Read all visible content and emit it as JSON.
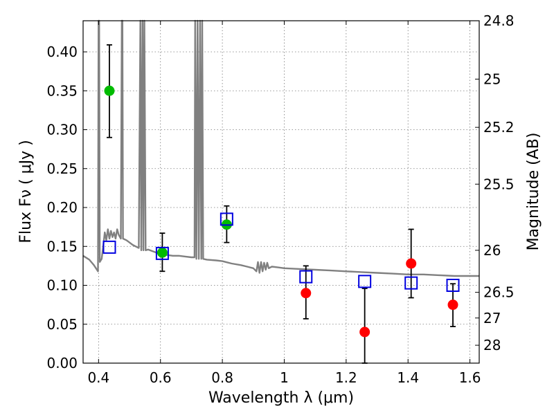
{
  "chart_data": {
    "type": "scatter",
    "xlabel": "Wavelength  λ (μm)",
    "ylabel": "Flux  Fν  ( μJy )",
    "ylabel_right": "Magnitude (AB)",
    "xlim": [
      0.35,
      1.63
    ],
    "ylim": [
      0.0,
      0.44
    ],
    "grid": true,
    "x_ticks": [
      0.4,
      0.6,
      0.8,
      1.0,
      1.2,
      1.4,
      1.6
    ],
    "x_tick_labels": [
      "0.4",
      "0.6",
      "0.8",
      "1",
      "1.2",
      "1.4",
      "1.6"
    ],
    "y_ticks": [
      0.0,
      0.05,
      0.1,
      0.15,
      0.2,
      0.25,
      0.3,
      0.35,
      0.4
    ],
    "y_tick_labels": [
      "0.00",
      "0.05",
      "0.10",
      "0.15",
      "0.20",
      "0.25",
      "0.30",
      "0.35",
      "0.40"
    ],
    "right_ticks": [
      {
        "label": "24.8",
        "flux": 0.44
      },
      {
        "label": "25",
        "flux": 0.365
      },
      {
        "label": "25.2",
        "flux": 0.303
      },
      {
        "label": "25.5",
        "flux": 0.23
      },
      {
        "label": "26",
        "flux": 0.145
      },
      {
        "label": "26.5",
        "flux": 0.091
      },
      {
        "label": "27",
        "flux": 0.058
      },
      {
        "label": "28",
        "flux": 0.023
      }
    ],
    "series": [
      {
        "name": "detections (green)",
        "color": "#00bb00",
        "points": [
          {
            "x": 0.435,
            "y": 0.35,
            "err_lo": 0.29,
            "err_hi": 0.409
          },
          {
            "x": 0.606,
            "y": 0.142,
            "err_lo": 0.118,
            "err_hi": 0.167
          },
          {
            "x": 0.814,
            "y": 0.178,
            "err_lo": 0.155,
            "err_hi": 0.202
          }
        ]
      },
      {
        "name": "near-IR (red)",
        "color": "#ff0000",
        "points": [
          {
            "x": 1.07,
            "y": 0.09,
            "err_lo": 0.057,
            "err_hi": 0.125
          },
          {
            "x": 1.26,
            "y": 0.04,
            "err_lo": 0.0,
            "err_hi": 0.096
          },
          {
            "x": 1.41,
            "y": 0.128,
            "err_lo": 0.084,
            "err_hi": 0.172
          },
          {
            "x": 1.545,
            "y": 0.075,
            "err_lo": 0.047,
            "err_hi": 0.102
          }
        ]
      },
      {
        "name": "model photometry (blue squares)",
        "color": "#0000e0",
        "points": [
          {
            "x": 0.435,
            "y": 0.149
          },
          {
            "x": 0.606,
            "y": 0.141
          },
          {
            "x": 0.814,
            "y": 0.185
          },
          {
            "x": 1.07,
            "y": 0.111
          },
          {
            "x": 1.26,
            "y": 0.105
          },
          {
            "x": 1.41,
            "y": 0.103
          },
          {
            "x": 1.545,
            "y": 0.1
          }
        ]
      }
    ],
    "sed_curve": {
      "color": "#808080",
      "points": [
        [
          0.35,
          0.138
        ],
        [
          0.37,
          0.133
        ],
        [
          0.385,
          0.126
        ],
        [
          0.398,
          0.118
        ],
        [
          0.4,
          0.44
        ],
        [
          0.402,
          0.44
        ],
        [
          0.404,
          0.13
        ],
        [
          0.41,
          0.134
        ],
        [
          0.415,
          0.15
        ],
        [
          0.42,
          0.168
        ],
        [
          0.425,
          0.158
        ],
        [
          0.43,
          0.172
        ],
        [
          0.435,
          0.16
        ],
        [
          0.44,
          0.17
        ],
        [
          0.445,
          0.162
        ],
        [
          0.45,
          0.168
        ],
        [
          0.455,
          0.16
        ],
        [
          0.46,
          0.172
        ],
        [
          0.465,
          0.165
        ],
        [
          0.472,
          0.16
        ],
        [
          0.475,
          0.44
        ],
        [
          0.477,
          0.44
        ],
        [
          0.479,
          0.16
        ],
        [
          0.49,
          0.158
        ],
        [
          0.5,
          0.155
        ],
        [
          0.51,
          0.152
        ],
        [
          0.52,
          0.15
        ],
        [
          0.53,
          0.148
        ],
        [
          0.535,
          0.44
        ],
        [
          0.538,
          0.145
        ],
        [
          0.542,
          0.44
        ],
        [
          0.545,
          0.145
        ],
        [
          0.548,
          0.44
        ],
        [
          0.552,
          0.145
        ],
        [
          0.56,
          0.146
        ],
        [
          0.58,
          0.143
        ],
        [
          0.6,
          0.14
        ],
        [
          0.62,
          0.139
        ],
        [
          0.64,
          0.138
        ],
        [
          0.66,
          0.138
        ],
        [
          0.68,
          0.137
        ],
        [
          0.7,
          0.136
        ],
        [
          0.71,
          0.136
        ],
        [
          0.712,
          0.44
        ],
        [
          0.716,
          0.134
        ],
        [
          0.72,
          0.44
        ],
        [
          0.724,
          0.134
        ],
        [
          0.728,
          0.44
        ],
        [
          0.732,
          0.134
        ],
        [
          0.735,
          0.44
        ],
        [
          0.738,
          0.134
        ],
        [
          0.75,
          0.133
        ],
        [
          0.78,
          0.132
        ],
        [
          0.8,
          0.131
        ],
        [
          0.83,
          0.128
        ],
        [
          0.86,
          0.126
        ],
        [
          0.88,
          0.124
        ],
        [
          0.9,
          0.122
        ],
        [
          0.91,
          0.118
        ],
        [
          0.915,
          0.13
        ],
        [
          0.92,
          0.116
        ],
        [
          0.925,
          0.13
        ],
        [
          0.93,
          0.118
        ],
        [
          0.935,
          0.129
        ],
        [
          0.94,
          0.12
        ],
        [
          0.945,
          0.129
        ],
        [
          0.95,
          0.122
        ],
        [
          0.96,
          0.124
        ],
        [
          0.98,
          0.123
        ],
        [
          1.0,
          0.122
        ],
        [
          1.05,
          0.121
        ],
        [
          1.1,
          0.12
        ],
        [
          1.15,
          0.119
        ],
        [
          1.2,
          0.118
        ],
        [
          1.25,
          0.117
        ],
        [
          1.3,
          0.116
        ],
        [
          1.35,
          0.115
        ],
        [
          1.4,
          0.114
        ],
        [
          1.45,
          0.114
        ],
        [
          1.5,
          0.113
        ],
        [
          1.55,
          0.112
        ],
        [
          1.6,
          0.112
        ],
        [
          1.63,
          0.112
        ]
      ]
    }
  }
}
